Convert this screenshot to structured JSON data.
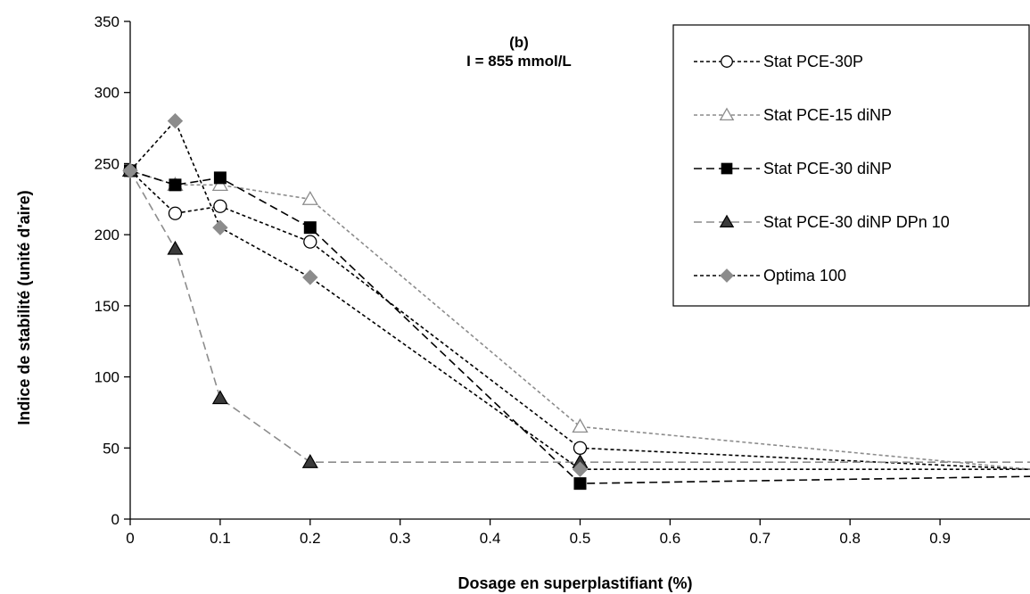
{
  "chart_data": {
    "type": "line",
    "title": "",
    "annotation": [
      "(b)",
      "I = 855 mmol/L"
    ],
    "xlabel": "Dosage en superplastifiant (%)",
    "ylabel": "Indice de stabilité (unité d'aire)",
    "xlim": [
      0,
      1
    ],
    "ylim": [
      0,
      350
    ],
    "xticks": [
      0,
      0.1,
      0.2,
      0.3,
      0.4,
      0.5,
      0.6,
      0.7,
      0.8,
      0.9
    ],
    "xtick_labels": [
      "0",
      "0.1",
      "0.2",
      "0.3",
      "0.4",
      "0.5",
      "0.6",
      "0.7",
      "0.8",
      "0.9"
    ],
    "yticks": [
      0,
      50,
      100,
      150,
      200,
      250,
      300,
      350
    ],
    "ytick_labels": [
      "0",
      "50",
      "100",
      "150",
      "200",
      "250",
      "300",
      "350"
    ],
    "grid": false,
    "legend_position": "top-right",
    "series": [
      {
        "name": "Stat PCE-30P",
        "x": [
          0,
          0.05,
          0.1,
          0.2,
          0.5,
          1.0
        ],
        "y": [
          245,
          215,
          220,
          195,
          50,
          35
        ],
        "color": "#000000",
        "marker": "circle-open",
        "dash": "short"
      },
      {
        "name": "Stat PCE-15 diNP",
        "x": [
          0,
          0.05,
          0.1,
          0.2,
          0.5,
          1.0
        ],
        "y": [
          245,
          235,
          235,
          225,
          65,
          35
        ],
        "color": "#8c8c8c",
        "marker": "triangle-open",
        "dash": "short"
      },
      {
        "name": "Stat PCE-30 diNP",
        "x": [
          0,
          0.05,
          0.1,
          0.2,
          0.5,
          1.0
        ],
        "y": [
          245,
          235,
          240,
          205,
          25,
          30
        ],
        "color": "#000000",
        "marker": "square-filled",
        "dash": "long"
      },
      {
        "name": "Stat PCE-30 diNP DPn 10",
        "x": [
          0,
          0.05,
          0.1,
          0.2,
          0.5,
          1.0
        ],
        "y": [
          245,
          190,
          85,
          40,
          40,
          40
        ],
        "color": "#8c8c8c",
        "marker": "triangle-filled",
        "dash": "long"
      },
      {
        "name": "Optima 100",
        "x": [
          0,
          0.05,
          0.1,
          0.2,
          0.5,
          1.0
        ],
        "y": [
          245,
          280,
          205,
          170,
          35,
          35
        ],
        "color": "#000000",
        "marker": "diamond-filled",
        "dash": "short"
      }
    ]
  }
}
